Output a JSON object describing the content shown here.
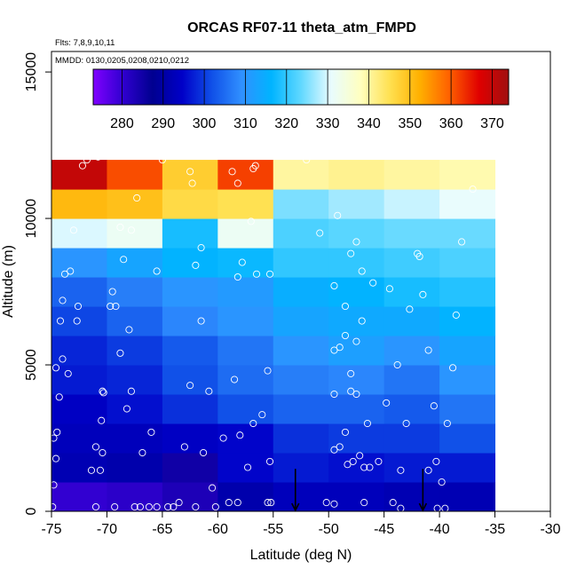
{
  "chart_data": {
    "type": "heatmap",
    "title": "ORCAS RF07-11 theta_atm_FMPD",
    "annotations": [
      "Flts: 7,8,9,10,11",
      "MMDD: 0130,0205,0208,0210,0212"
    ],
    "xlabel": "Latitude (deg N)",
    "ylabel": "Altitude (m)",
    "xlim": [
      -75,
      -30
    ],
    "ylim": [
      0,
      15700
    ],
    "x_ticks": [
      "-75",
      "-70",
      "-65",
      "-60",
      "-55",
      "-50",
      "-45",
      "-40",
      "-35",
      "-30"
    ],
    "y_ticks": [
      "0",
      "5000",
      "10000",
      "15000"
    ],
    "colorbar": {
      "min": 273,
      "max": 374,
      "ticks": [
        "280",
        "290",
        "300",
        "310",
        "320",
        "330",
        "340",
        "350",
        "360",
        "370"
      ],
      "stops": [
        "#8000ff",
        "#3000d0",
        "#000090",
        "#0000c8",
        "#1050e8",
        "#3090ff",
        "#00b4ff",
        "#60d8ff",
        "#e8fcff",
        "#ffffc0",
        "#ffe050",
        "#ffb000",
        "#ff6000",
        "#e00000",
        "#a01010"
      ]
    },
    "grid": {
      "x_edges": [
        -75,
        -70,
        -65,
        -60,
        -55,
        -50,
        -45,
        -40,
        -35
      ],
      "y_edges": [
        0,
        1000,
        2000,
        3000,
        4000,
        5000,
        6000,
        7000,
        8000,
        9000,
        10000,
        11000,
        12000
      ],
      "values": [
        [
          280,
          281,
          283,
          291,
          293,
          293,
          292,
          292
        ],
        [
          292,
          291,
          285,
          295,
          297,
          296,
          297,
          297
        ],
        [
          293,
          293,
          294,
          295,
          299,
          300,
          300,
          302
        ],
        [
          294,
          296,
          299,
          302,
          304,
          304,
          303,
          306
        ],
        [
          297,
          298,
          302,
          305,
          307,
          308,
          306,
          310
        ],
        [
          298,
          300,
          303,
          306,
          310,
          312,
          310,
          313
        ],
        [
          301,
          304,
          308,
          310,
          313,
          314,
          314,
          316
        ],
        [
          304,
          307,
          310,
          311,
          315,
          316,
          318,
          319
        ],
        [
          310,
          313,
          316,
          317,
          320,
          320,
          321,
          322
        ],
        [
          330,
          332,
          318,
          332,
          322,
          323,
          324,
          324
        ],
        [
          351,
          350,
          346,
          345,
          325,
          327,
          329,
          331
        ],
        [
          370,
          361,
          348,
          362,
          340,
          341,
          340,
          339
        ]
      ]
    },
    "observations": [
      [
        -74.9,
        150
      ],
      [
        -74.8,
        900
      ],
      [
        -74.6,
        1800
      ],
      [
        -74.5,
        2700
      ],
      [
        -74.8,
        2500
      ],
      [
        -74.3,
        3900
      ],
      [
        -74.6,
        4900
      ],
      [
        -74.0,
        5200
      ],
      [
        -73.5,
        4700
      ],
      [
        -74.2,
        6500
      ],
      [
        -74.0,
        7200
      ],
      [
        -73.8,
        8100
      ],
      [
        -73.3,
        8200
      ],
      [
        -72.6,
        7000
      ],
      [
        -72.7,
        6500
      ],
      [
        -73.0,
        9600
      ],
      [
        -72.2,
        11800
      ],
      [
        -71.8,
        12000
      ],
      [
        -70.8,
        12100
      ],
      [
        -71.4,
        1400
      ],
      [
        -70.6,
        1400
      ],
      [
        -70.4,
        2000
      ],
      [
        -70.5,
        3100
      ],
      [
        -71.0,
        2200
      ],
      [
        -70.4,
        4100
      ],
      [
        -70.3,
        4050
      ],
      [
        -69.7,
        7000
      ],
      [
        -69.2,
        7000
      ],
      [
        -69.5,
        7500
      ],
      [
        -68.5,
        8600
      ],
      [
        -68.8,
        5400
      ],
      [
        -67.3,
        10700
      ],
      [
        -68.8,
        9700
      ],
      [
        -67.8,
        9600
      ],
      [
        -68.2,
        3500
      ],
      [
        -68.0,
        6200
      ],
      [
        -67.8,
        4100
      ],
      [
        -66.8,
        2000
      ],
      [
        -66.0,
        2700
      ],
      [
        -65.5,
        8200
      ],
      [
        -65.0,
        12000
      ],
      [
        -62.5,
        11600
      ],
      [
        -62.3,
        11200
      ],
      [
        -61.5,
        9000
      ],
      [
        -62.0,
        8400
      ],
      [
        -61.5,
        6500
      ],
      [
        -62.5,
        4300
      ],
      [
        -63.0,
        2200
      ],
      [
        -60.8,
        4100
      ],
      [
        -61.3,
        2000
      ],
      [
        -60.5,
        800
      ],
      [
        -58.7,
        11600
      ],
      [
        -58.2,
        11200
      ],
      [
        -56.8,
        11700
      ],
      [
        -56.6,
        11800
      ],
      [
        -57.8,
        8500
      ],
      [
        -58.2,
        8000
      ],
      [
        -57.0,
        9900
      ],
      [
        -56.5,
        8100
      ],
      [
        -55.3,
        8100
      ],
      [
        -56.8,
        3000
      ],
      [
        -57.3,
        1500
      ],
      [
        -58.0,
        2600
      ],
      [
        -58.5,
        4500
      ],
      [
        -55.5,
        4800
      ],
      [
        -56.0,
        3300
      ],
      [
        -55.3,
        1700
      ],
      [
        -59.0,
        300
      ],
      [
        -55.2,
        300
      ],
      [
        -50.8,
        9500
      ],
      [
        -49.2,
        10100
      ],
      [
        -49.5,
        7700
      ],
      [
        -48.5,
        7000
      ],
      [
        -48.5,
        6000
      ],
      [
        -48.0,
        8800
      ],
      [
        -47.5,
        9200
      ],
      [
        -47.0,
        8200
      ],
      [
        -47.0,
        6500
      ],
      [
        -46.0,
        7800
      ],
      [
        -47.5,
        5800
      ],
      [
        -48.0,
        4700
      ],
      [
        -49.0,
        5600
      ],
      [
        -49.5,
        5500
      ],
      [
        -49.5,
        4000
      ],
      [
        -48.0,
        4100
      ],
      [
        -47.5,
        4000
      ],
      [
        -46.5,
        3000
      ],
      [
        -48.5,
        2700
      ],
      [
        -49.0,
        2200
      ],
      [
        -49.5,
        2100
      ],
      [
        -48.3,
        1600
      ],
      [
        -47.8,
        1700
      ],
      [
        -47.2,
        1900
      ],
      [
        -46.8,
        1500
      ],
      [
        -46.3,
        1500
      ],
      [
        -45.5,
        1700
      ],
      [
        -43.8,
        5000
      ],
      [
        -44.8,
        3700
      ],
      [
        -44.5,
        7600
      ],
      [
        -42.7,
        6900
      ],
      [
        -42.0,
        8800
      ],
      [
        -41.8,
        8700
      ],
      [
        -43.0,
        3000
      ],
      [
        -41.5,
        7400
      ],
      [
        -41.0,
        5500
      ],
      [
        -40.3,
        1700
      ],
      [
        -39.8,
        1000
      ],
      [
        -40.5,
        3600
      ],
      [
        -39.3,
        3000
      ],
      [
        -38.8,
        4900
      ],
      [
        -38.5,
        6700
      ],
      [
        -38.0,
        9200
      ],
      [
        -37.0,
        11000
      ],
      [
        -43.5,
        1400
      ],
      [
        -41.0,
        1400
      ],
      [
        -50.2,
        300
      ],
      [
        -49.5,
        250
      ],
      [
        -46.8,
        300
      ],
      [
        -44.2,
        300
      ],
      [
        -43.5,
        100
      ],
      [
        -40.2,
        100
      ],
      [
        -39.5,
        100
      ],
      [
        -71.0,
        150
      ],
      [
        -69.3,
        150
      ],
      [
        -67.5,
        150
      ],
      [
        -66.2,
        150
      ],
      [
        -64.0,
        150
      ],
      [
        -62.0,
        150
      ],
      [
        -60.2,
        150
      ],
      [
        -63.5,
        300
      ],
      [
        -64.5,
        150
      ],
      [
        -65.5,
        150
      ],
      [
        -67.0,
        150
      ],
      [
        -58.2,
        300
      ],
      [
        -55.5,
        300
      ],
      [
        -59.5,
        2500
      ],
      [
        -52.0,
        12000
      ]
    ],
    "markers": [
      {
        "x": -53.0,
        "label": ""
      },
      {
        "x": -41.5,
        "label": ""
      }
    ]
  }
}
